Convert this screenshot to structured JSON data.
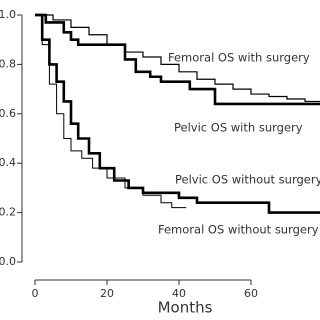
{
  "chart_data": {
    "type": "step",
    "x_label": "Months",
    "xlim": [
      0,
      80
    ],
    "xticks": [
      0,
      20,
      40,
      60
    ],
    "ylim": [
      0,
      1.0
    ],
    "yticks": [
      {
        "value": 0,
        "label": "0.0"
      },
      {
        "value": 0.2,
        "label": "0.2"
      },
      {
        "value": 0.4,
        "label": "0.4"
      },
      {
        "value": 0.6,
        "label": "0.6"
      },
      {
        "value": 0.8,
        "label": "0.8"
      },
      {
        "value": 1.0,
        "label": "1.0"
      }
    ],
    "series": [
      {
        "name": "Femoral OS with surgery",
        "color": "#000000",
        "width": 1.2,
        "x": [
          0,
          5,
          10,
          15,
          20,
          25,
          30,
          35,
          40,
          45,
          50,
          55,
          60,
          65,
          70,
          75,
          80
        ],
        "values": [
          1.0,
          0.98,
          0.95,
          0.92,
          0.88,
          0.85,
          0.83,
          0.8,
          0.77,
          0.74,
          0.72,
          0.7,
          0.68,
          0.67,
          0.66,
          0.65,
          0.65
        ]
      },
      {
        "name": "Pelvic OS with surgery",
        "color": "#000000",
        "width": 2.6,
        "x": [
          0,
          3,
          8,
          10,
          12,
          25,
          28,
          32,
          35,
          43,
          50,
          80
        ],
        "values": [
          1.0,
          0.97,
          0.93,
          0.9,
          0.88,
          0.82,
          0.77,
          0.75,
          0.73,
          0.7,
          0.64,
          0.64
        ]
      },
      {
        "name": "Pelvic OS without surgery",
        "color": "#000000",
        "width": 2.6,
        "x": [
          0,
          2,
          4,
          6,
          8,
          10,
          12,
          15,
          18,
          22,
          26,
          30,
          40,
          45,
          65,
          80
        ],
        "values": [
          1.0,
          0.9,
          0.8,
          0.73,
          0.65,
          0.56,
          0.5,
          0.44,
          0.38,
          0.33,
          0.3,
          0.28,
          0.26,
          0.24,
          0.2,
          0.2
        ]
      },
      {
        "name": "Femoral OS without surgery",
        "color": "#000000",
        "width": 1.0,
        "x": [
          0,
          2,
          4,
          6,
          8,
          10,
          13,
          16,
          20,
          25,
          30,
          35,
          38,
          42
        ],
        "values": [
          1.0,
          0.88,
          0.72,
          0.6,
          0.5,
          0.45,
          0.42,
          0.38,
          0.34,
          0.3,
          0.27,
          0.24,
          0.22,
          0.22
        ]
      }
    ]
  }
}
